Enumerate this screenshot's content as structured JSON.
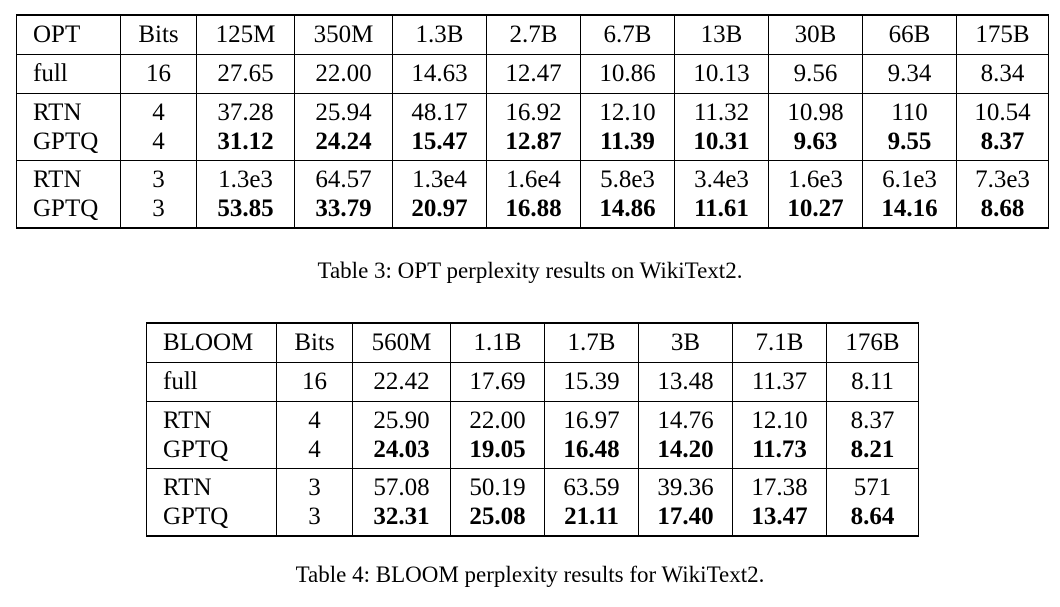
{
  "opt_table": {
    "header": [
      "OPT",
      "Bits",
      "125M",
      "350M",
      "1.3B",
      "2.7B",
      "6.7B",
      "13B",
      "30B",
      "66B",
      "175B"
    ],
    "groups": [
      [
        {
          "method": "full",
          "bits": "16",
          "values": [
            "27.65",
            "22.00",
            "14.63",
            "12.47",
            "10.86",
            "10.13",
            "9.56",
            "9.34",
            "8.34"
          ],
          "bold": false
        }
      ],
      [
        {
          "method": "RTN",
          "bits": "4",
          "values": [
            "37.28",
            "25.94",
            "48.17",
            "16.92",
            "12.10",
            "11.32",
            "10.98",
            "110",
            "10.54"
          ],
          "bold": false
        },
        {
          "method": "GPTQ",
          "bits": "4",
          "values": [
            "31.12",
            "24.24",
            "15.47",
            "12.87",
            "11.39",
            "10.31",
            "9.63",
            "9.55",
            "8.37"
          ],
          "bold": true
        }
      ],
      [
        {
          "method": "RTN",
          "bits": "3",
          "values": [
            "1.3e3",
            "64.57",
            "1.3e4",
            "1.6e4",
            "5.8e3",
            "3.4e3",
            "1.6e3",
            "6.1e3",
            "7.3e3"
          ],
          "bold": false
        },
        {
          "method": "GPTQ",
          "bits": "3",
          "values": [
            "53.85",
            "33.79",
            "20.97",
            "16.88",
            "14.86",
            "11.61",
            "10.27",
            "14.16",
            "8.68"
          ],
          "bold": true
        }
      ]
    ],
    "caption": "Table 3: OPT perplexity results on WikiText2."
  },
  "bloom_table": {
    "header": [
      "BLOOM",
      "Bits",
      "560M",
      "1.1B",
      "1.7B",
      "3B",
      "7.1B",
      "176B"
    ],
    "groups": [
      [
        {
          "method": "full",
          "bits": "16",
          "values": [
            "22.42",
            "17.69",
            "15.39",
            "13.48",
            "11.37",
            "8.11"
          ],
          "bold": false
        }
      ],
      [
        {
          "method": "RTN",
          "bits": "4",
          "values": [
            "25.90",
            "22.00",
            "16.97",
            "14.76",
            "12.10",
            "8.37"
          ],
          "bold": false
        },
        {
          "method": "GPTQ",
          "bits": "4",
          "values": [
            "24.03",
            "19.05",
            "16.48",
            "14.20",
            "11.73",
            "8.21"
          ],
          "bold": true
        }
      ],
      [
        {
          "method": "RTN",
          "bits": "3",
          "values": [
            "57.08",
            "50.19",
            "63.59",
            "39.36",
            "17.38",
            "571"
          ],
          "bold": false
        },
        {
          "method": "GPTQ",
          "bits": "3",
          "values": [
            "32.31",
            "25.08",
            "21.11",
            "17.40",
            "13.47",
            "8.64"
          ],
          "bold": true
        }
      ]
    ],
    "caption": "Table 4: BLOOM perplexity results for WikiText2."
  }
}
